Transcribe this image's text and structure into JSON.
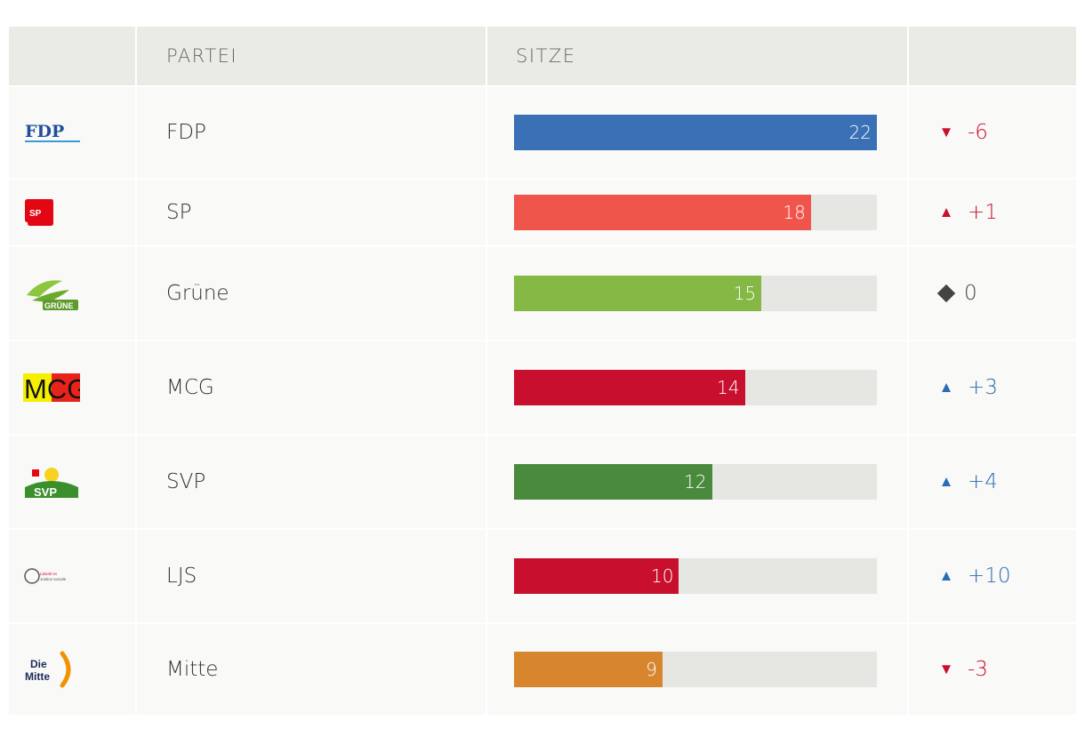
{
  "header": {
    "logo_col": "",
    "party_col": "PARTEI",
    "seats_col": "SITZE",
    "change_col": ""
  },
  "chart_data": {
    "type": "bar",
    "orientation": "horizontal",
    "xlim": [
      0,
      22
    ],
    "grid": false,
    "categories": [
      "FDP",
      "SP",
      "Grüne",
      "MCG",
      "SVP",
      "LJS",
      "Mitte"
    ],
    "values": [
      22,
      18,
      15,
      14,
      12,
      10,
      9
    ],
    "changes": [
      "-6",
      "+1",
      "0",
      "+3",
      "+4",
      "+10",
      "-3"
    ]
  },
  "rows": [
    {
      "party": "FDP",
      "seats": 22,
      "change": "-6",
      "trend": "down",
      "color": "#3a70b5",
      "logo_text": "FDP",
      "logo_icon": "fdp-logo-icon"
    },
    {
      "party": "SP",
      "seats": 18,
      "change": "+1",
      "trend": "up-red",
      "color": "#f0554c",
      "logo_text": "SP",
      "logo_icon": "sp-logo-icon"
    },
    {
      "party": "Grüne",
      "seats": 15,
      "change": "0",
      "trend": "neutral",
      "color": "#85b844",
      "logo_text": "GRÜNE",
      "logo_icon": "gruene-logo-icon"
    },
    {
      "party": "MCG",
      "seats": 14,
      "change": "+3",
      "trend": "up-blue",
      "color": "#c8102e",
      "logo_text": "MCG",
      "logo_icon": "mcg-logo-icon"
    },
    {
      "party": "SVP",
      "seats": 12,
      "change": "+4",
      "trend": "up-blue",
      "color": "#4a8a3d",
      "logo_text": "SVP",
      "logo_icon": "svp-logo-icon"
    },
    {
      "party": "LJS",
      "seats": 10,
      "change": "+10",
      "trend": "up-blue",
      "color": "#c8102e",
      "logo_text": "Liberté et Justice sociale",
      "logo_icon": "ljs-logo-icon"
    },
    {
      "party": "Mitte",
      "seats": 9,
      "change": "-3",
      "trend": "down",
      "color": "#d7862e",
      "logo_text": "Die Mitte",
      "logo_icon": "mitte-logo-icon"
    }
  ]
}
